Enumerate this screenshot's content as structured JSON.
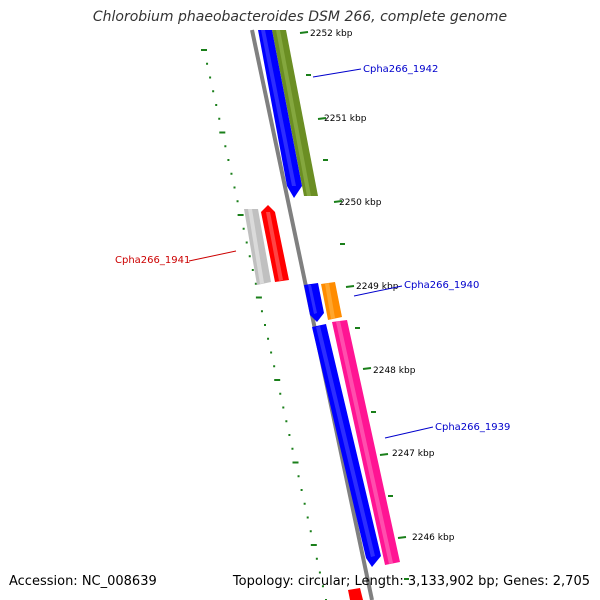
{
  "title": "Chlorobium phaeobacteroides DSM 266, complete genome",
  "accession": "Accession: NC_008639",
  "summary": "Topology: circular; Length: 3,133,902 bp; Genes: 2,705",
  "colors": {
    "backbone": "#808080",
    "tick": "#1a7f1a",
    "forward_label": "#0000cc",
    "reverse_label": "#cc0000",
    "blue_gene": "#0000ff",
    "olive_gene": "#6b8e23",
    "red_gene": "#ff0000",
    "gray_gene": "#c0c0c0",
    "orange_gene": "#ff8c00",
    "pink_gene": "#ff1493"
  },
  "kbp_ticks": [
    "2252 kbp",
    "2251 kbp",
    "2250 kbp",
    "2249 kbp",
    "2248 kbp",
    "2247 kbp",
    "2246 kbp"
  ],
  "gene_labels": [
    "Cpha266_1942",
    "Cpha266_1941",
    "Cpha266_1940",
    "Cpha266_1939"
  ]
}
